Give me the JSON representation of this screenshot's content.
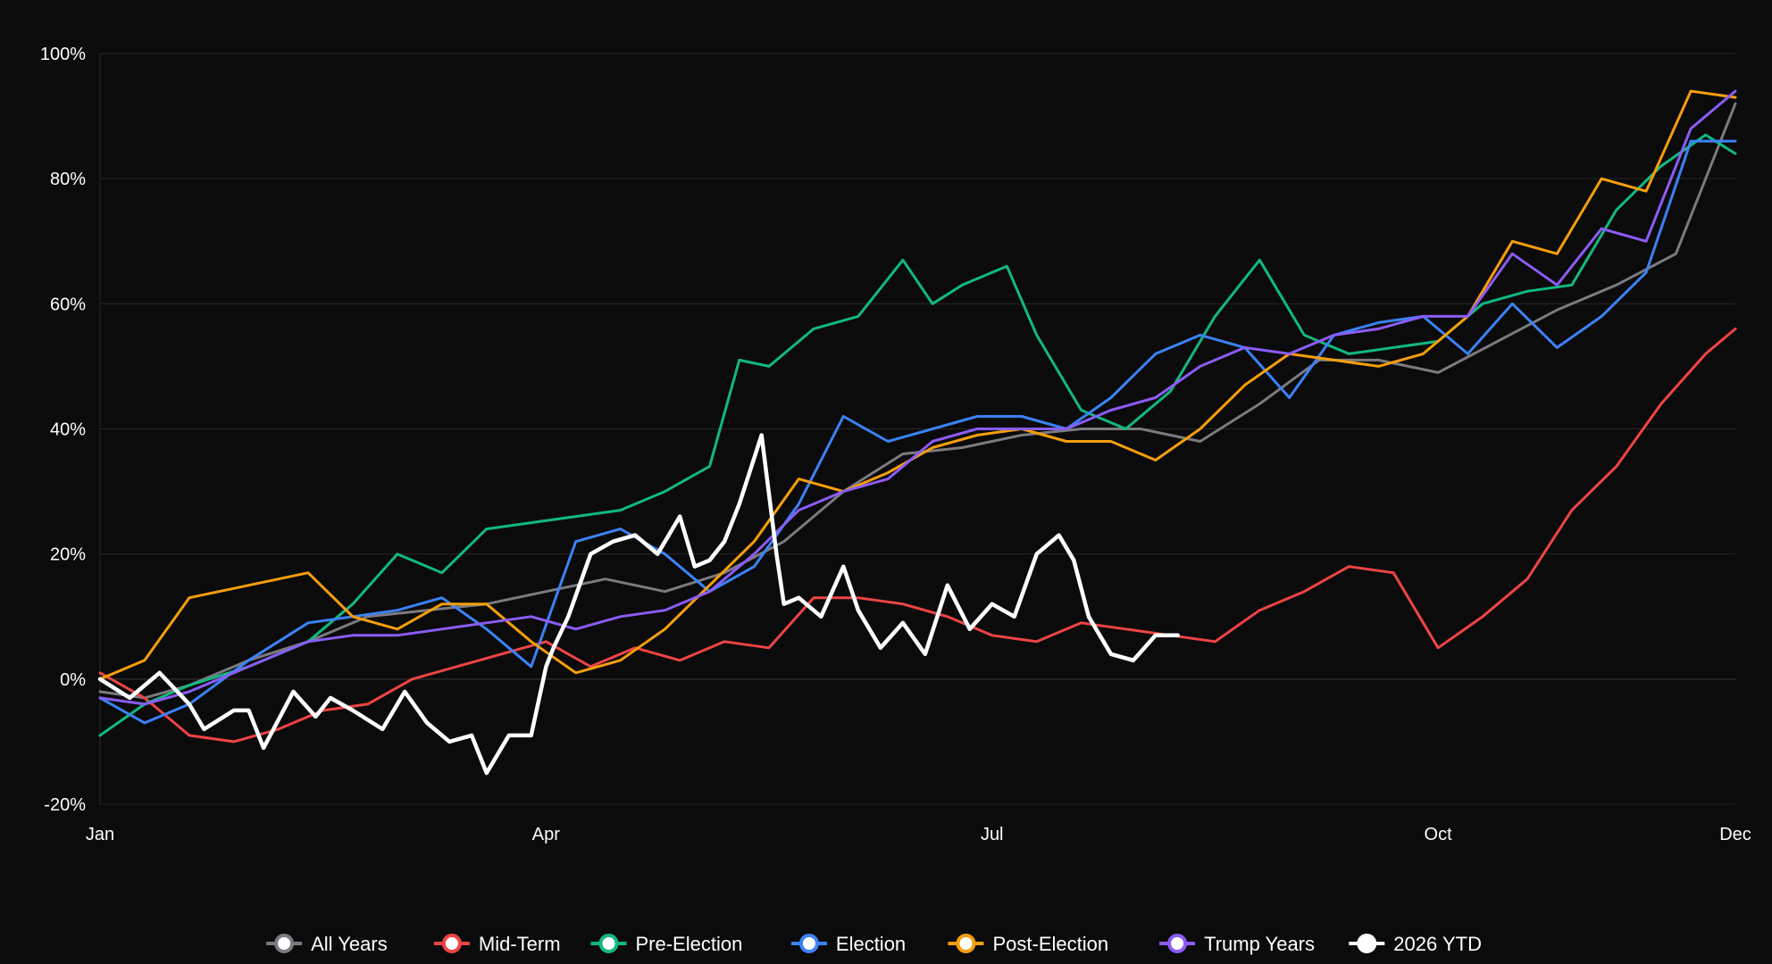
{
  "chart_data": {
    "type": "line",
    "title": "",
    "xlabel": "",
    "ylabel": "",
    "x_tick_labels": [
      "Jan",
      "Apr",
      "Jul",
      "Oct",
      "Dec"
    ],
    "x_tick_months": [
      0,
      3,
      6,
      9,
      11
    ],
    "xlim_months": [
      0,
      11
    ],
    "ylim": [
      -20,
      100
    ],
    "y_ticks": [
      -20,
      0,
      20,
      40,
      60,
      80,
      100
    ],
    "y_tick_labels": [
      "-20%",
      "0%",
      "20%",
      "40%",
      "60%",
      "80%",
      "100%"
    ],
    "grid": true,
    "legend_position": "bottom",
    "series": [
      {
        "name": "All Years",
        "color": "#7a7a80",
        "x": [
          0,
          0.3,
          0.6,
          1.0,
          1.4,
          1.8,
          2.2,
          2.6,
          3.0,
          3.4,
          3.8,
          4.2,
          4.6,
          5.0,
          5.4,
          5.8,
          6.2,
          6.6,
          7.0,
          7.4,
          7.8,
          8.2,
          8.6,
          9.0,
          9.4,
          9.8,
          10.2,
          10.6,
          11.0
        ],
        "y": [
          -2,
          -3,
          -1,
          3,
          6,
          10,
          11,
          12,
          14,
          16,
          14,
          17,
          22,
          30,
          36,
          37,
          39,
          40,
          40,
          38,
          44,
          51,
          51,
          49,
          54,
          59,
          63,
          68,
          92
        ]
      },
      {
        "name": "Mid-Term",
        "color": "#ef4444",
        "x": [
          0,
          0.3,
          0.6,
          0.9,
          1.2,
          1.5,
          1.8,
          2.1,
          2.4,
          2.7,
          3.0,
          3.3,
          3.6,
          3.9,
          4.2,
          4.5,
          4.8,
          5.1,
          5.4,
          5.7,
          6.0,
          6.3,
          6.6,
          6.9,
          7.2,
          7.5,
          7.8,
          8.1,
          8.4,
          8.7,
          9.0,
          9.3,
          9.6,
          9.9,
          10.2,
          10.5,
          10.8,
          11.0
        ],
        "y": [
          1,
          -3,
          -9,
          -10,
          -8,
          -5,
          -4,
          0,
          2,
          4,
          6,
          2,
          5,
          3,
          6,
          5,
          13,
          13,
          12,
          10,
          7,
          6,
          9,
          8,
          7,
          6,
          11,
          14,
          18,
          17,
          5,
          10,
          16,
          27,
          34,
          44,
          52,
          56
        ]
      },
      {
        "name": "Pre-Election",
        "color": "#10b981",
        "x": [
          0,
          0.3,
          0.6,
          1.0,
          1.4,
          1.7,
          2.0,
          2.3,
          2.6,
          2.9,
          3.2,
          3.5,
          3.8,
          4.1,
          4.3,
          4.5,
          4.8,
          5.1,
          5.4,
          5.6,
          5.8,
          6.1,
          6.3,
          6.6,
          6.9,
          7.2,
          7.5,
          7.8,
          8.1,
          8.4,
          8.7,
          9.0,
          9.3,
          9.6,
          9.9,
          10.2,
          10.5,
          10.8,
          11.0
        ],
        "y": [
          -9,
          -4,
          -1,
          2,
          6,
          12,
          20,
          17,
          24,
          25,
          26,
          27,
          30,
          34,
          51,
          50,
          56,
          58,
          67,
          60,
          63,
          66,
          55,
          43,
          40,
          46,
          58,
          67,
          55,
          52,
          53,
          54,
          60,
          62,
          63,
          75,
          82,
          87,
          84
        ]
      },
      {
        "name": "Election",
        "color": "#3b82f6",
        "x": [
          0,
          0.3,
          0.6,
          1.0,
          1.4,
          1.7,
          2.0,
          2.3,
          2.6,
          2.9,
          3.2,
          3.5,
          3.8,
          4.1,
          4.4,
          4.7,
          5.0,
          5.3,
          5.6,
          5.9,
          6.2,
          6.5,
          6.8,
          7.1,
          7.4,
          7.7,
          8.0,
          8.3,
          8.6,
          8.9,
          9.2,
          9.5,
          9.8,
          10.1,
          10.4,
          10.7,
          11.0
        ],
        "y": [
          -3,
          -7,
          -4,
          3,
          9,
          10,
          11,
          13,
          8,
          2,
          22,
          24,
          20,
          14,
          18,
          28,
          42,
          38,
          40,
          42,
          42,
          40,
          45,
          52,
          55,
          53,
          45,
          55,
          57,
          58,
          52,
          60,
          53,
          58,
          65,
          86,
          86
        ]
      },
      {
        "name": "Post-Election",
        "color": "#f59e0b",
        "x": [
          0,
          0.3,
          0.6,
          1.0,
          1.4,
          1.7,
          2.0,
          2.3,
          2.6,
          2.9,
          3.2,
          3.5,
          3.8,
          4.1,
          4.4,
          4.7,
          5.0,
          5.3,
          5.6,
          5.9,
          6.2,
          6.5,
          6.8,
          7.1,
          7.4,
          7.7,
          8.0,
          8.3,
          8.6,
          8.9,
          9.2,
          9.5,
          9.8,
          10.1,
          10.4,
          10.7,
          11.0
        ],
        "y": [
          0,
          3,
          13,
          15,
          17,
          10,
          8,
          12,
          12,
          6,
          1,
          3,
          8,
          15,
          22,
          32,
          30,
          33,
          37,
          39,
          40,
          38,
          38,
          35,
          40,
          47,
          52,
          51,
          50,
          52,
          58,
          70,
          68,
          80,
          78,
          94,
          93
        ]
      },
      {
        "name": "Trump Years",
        "color": "#8b5cf6",
        "x": [
          0,
          0.3,
          0.6,
          1.0,
          1.4,
          1.7,
          2.0,
          2.3,
          2.6,
          2.9,
          3.2,
          3.5,
          3.8,
          4.1,
          4.4,
          4.7,
          5.0,
          5.3,
          5.6,
          5.9,
          6.2,
          6.5,
          6.8,
          7.1,
          7.4,
          7.7,
          8.0,
          8.3,
          8.6,
          8.9,
          9.2,
          9.5,
          9.8,
          10.1,
          10.4,
          10.7,
          11.0
        ],
        "y": [
          -3,
          -4,
          -2,
          2,
          6,
          7,
          7,
          8,
          9,
          10,
          8,
          10,
          11,
          14,
          20,
          27,
          30,
          32,
          38,
          40,
          40,
          40,
          43,
          45,
          50,
          53,
          52,
          55,
          56,
          58,
          58,
          68,
          63,
          72,
          70,
          88,
          94
        ]
      },
      {
        "name": "2026 YTD",
        "color": "#ffffff",
        "x": [
          0,
          0.2,
          0.4,
          0.6,
          0.7,
          0.9,
          1.0,
          1.1,
          1.3,
          1.45,
          1.55,
          1.7,
          1.9,
          2.05,
          2.2,
          2.35,
          2.5,
          2.6,
          2.75,
          2.9,
          3.0,
          3.05,
          3.15,
          3.3,
          3.45,
          3.6,
          3.75,
          3.9,
          4.0,
          4.1,
          4.2,
          4.3,
          4.45,
          4.55,
          4.6,
          4.7,
          4.85,
          5.0,
          5.1,
          5.25,
          5.4,
          5.55,
          5.7,
          5.85,
          6.0,
          6.15,
          6.3,
          6.45,
          6.55,
          6.65,
          6.8,
          6.95,
          7.1,
          7.25
        ],
        "y": [
          0,
          -3,
          1,
          -4,
          -8,
          -5,
          -5,
          -11,
          -2,
          -6,
          -3,
          -5,
          -8,
          -2,
          -7,
          -10,
          -9,
          -15,
          -9,
          -9,
          2,
          5,
          10,
          20,
          22,
          23,
          20,
          26,
          18,
          19,
          22,
          28,
          39,
          20,
          12,
          13,
          10,
          18,
          11,
          5,
          9,
          4,
          15,
          8,
          12,
          10,
          20,
          23,
          19,
          10,
          4,
          3,
          7,
          7
        ]
      }
    ]
  }
}
